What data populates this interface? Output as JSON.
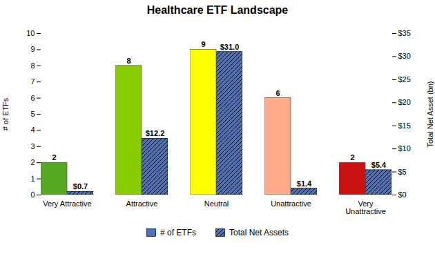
{
  "chart_data": {
    "type": "bar",
    "title": "Healthcare ETF Landscape",
    "categories": [
      "Very Attractive",
      "Attractive",
      "Neutral",
      "Unattractive",
      "Very\nUnattractive"
    ],
    "series": [
      {
        "name": "# of ETFs",
        "color": "#4472c4",
        "colors": [
          "#55aa22",
          "#88cc00",
          "#ffff00",
          "#ffaa88",
          "#cc1111"
        ],
        "values": [
          2,
          8,
          9,
          6,
          2
        ]
      },
      {
        "name": "Total Net Assets",
        "axis": "y2",
        "color": "#4472c4",
        "values": [
          0.7,
          12.2,
          31.0,
          1.4,
          5.4
        ],
        "value_labels": [
          "$0.7",
          "$12.2",
          "$31.0",
          "$1.4",
          "$5.4"
        ]
      }
    ],
    "ylabel": "# of ETFs",
    "y2label": "Total Net Asset (bn)",
    "ylim": [
      0,
      10
    ],
    "yticks": [
      0,
      1,
      2,
      3,
      4,
      5,
      6,
      7,
      8,
      9,
      10
    ],
    "y2lim": [
      0,
      35
    ],
    "y2ticks": [
      {
        "value": 0,
        "label": "$0"
      },
      {
        "value": 5,
        "label": "$5"
      },
      {
        "value": 10,
        "label": "$10"
      },
      {
        "value": 15,
        "label": "$15"
      },
      {
        "value": 20,
        "label": "$20"
      },
      {
        "value": 25,
        "label": "$25"
      },
      {
        "value": 30,
        "label": "$30"
      },
      {
        "value": 35,
        "label": "$35"
      }
    ],
    "grid": false,
    "legend": "bottom",
    "data_labels": true
  }
}
